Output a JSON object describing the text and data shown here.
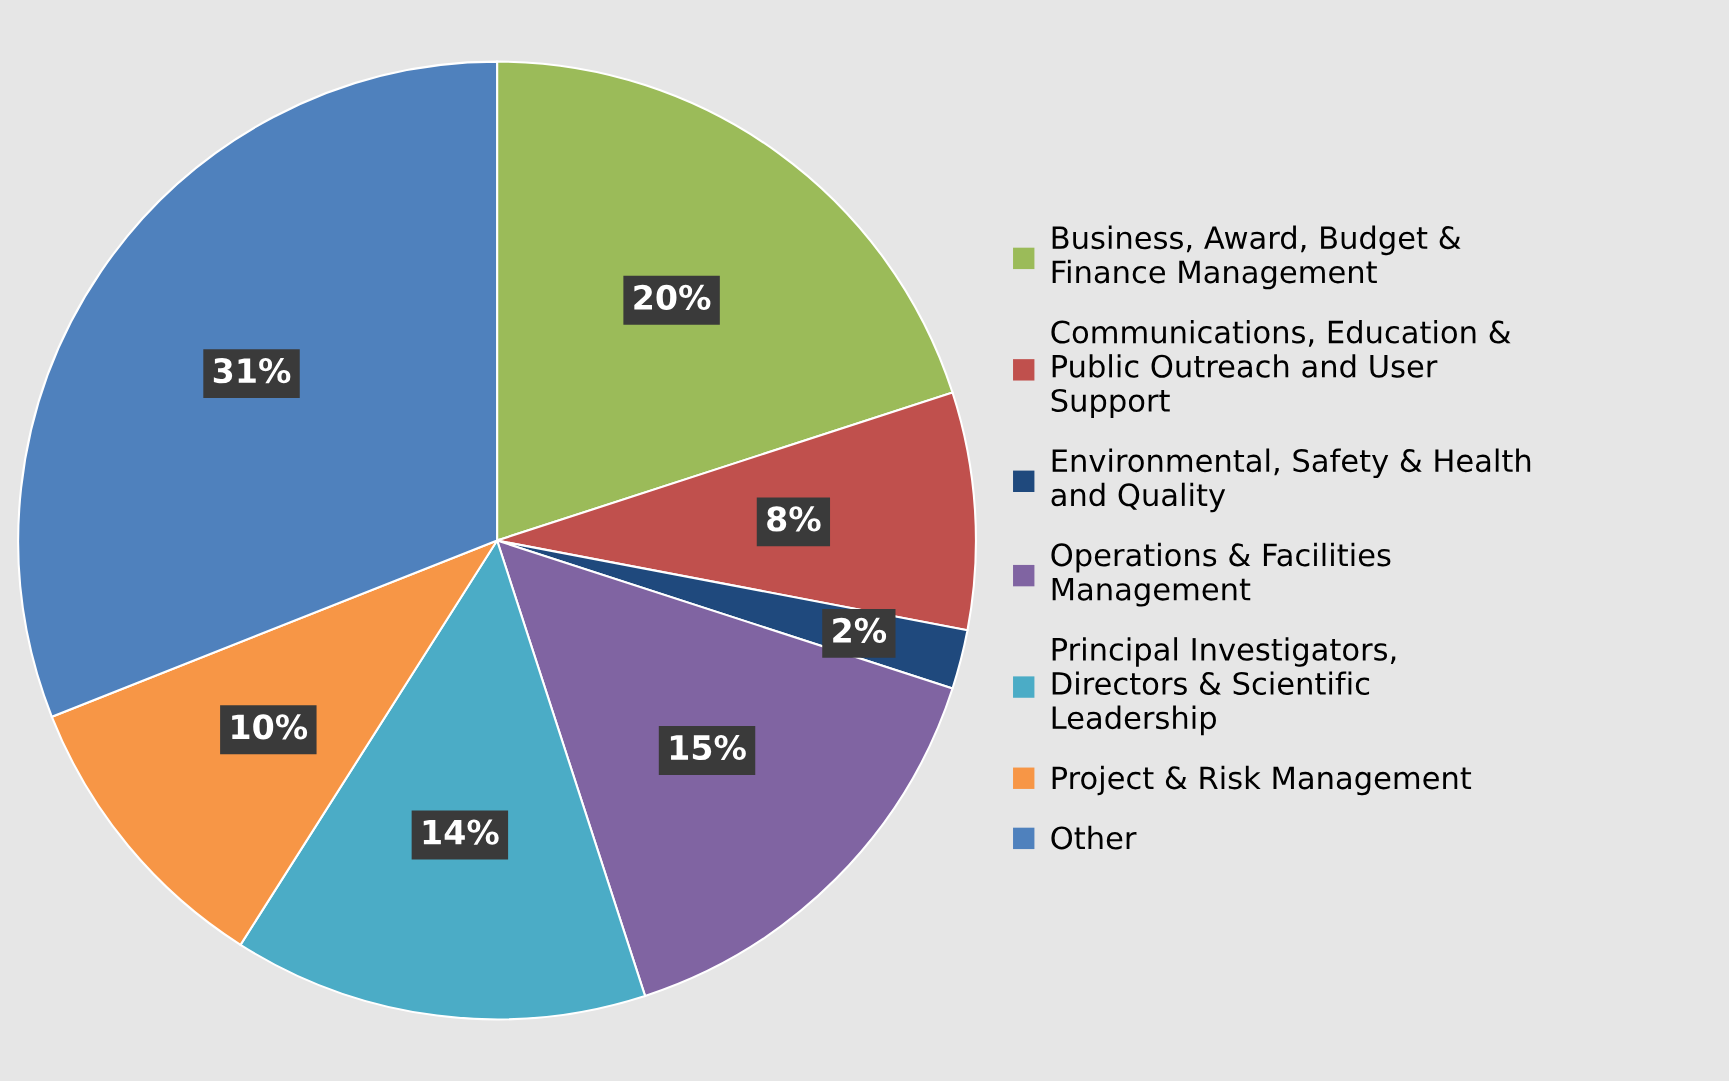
{
  "chart_data": {
    "type": "pie",
    "categories": [
      "Business, Award, Budget & Finance Management",
      "Communications, Education & Public Outreach and User Support",
      "Environmental, Safety & Health and Quality",
      "Operations & Facilities Management",
      "Principal Investigators, Directors & Scientific Leadership",
      "Project & Risk Management",
      "Other"
    ],
    "values": [
      20,
      8,
      2,
      15,
      14,
      10,
      31
    ],
    "colors": [
      "#9bbb59",
      "#c0504d",
      "#1f497d",
      "#8064a2",
      "#4bacc6",
      "#f79646",
      "#4f81bd"
    ],
    "value_labels": [
      "20%",
      "8%",
      "2%",
      "15%",
      "14%",
      "10%",
      "31%"
    ],
    "legend": "right"
  }
}
